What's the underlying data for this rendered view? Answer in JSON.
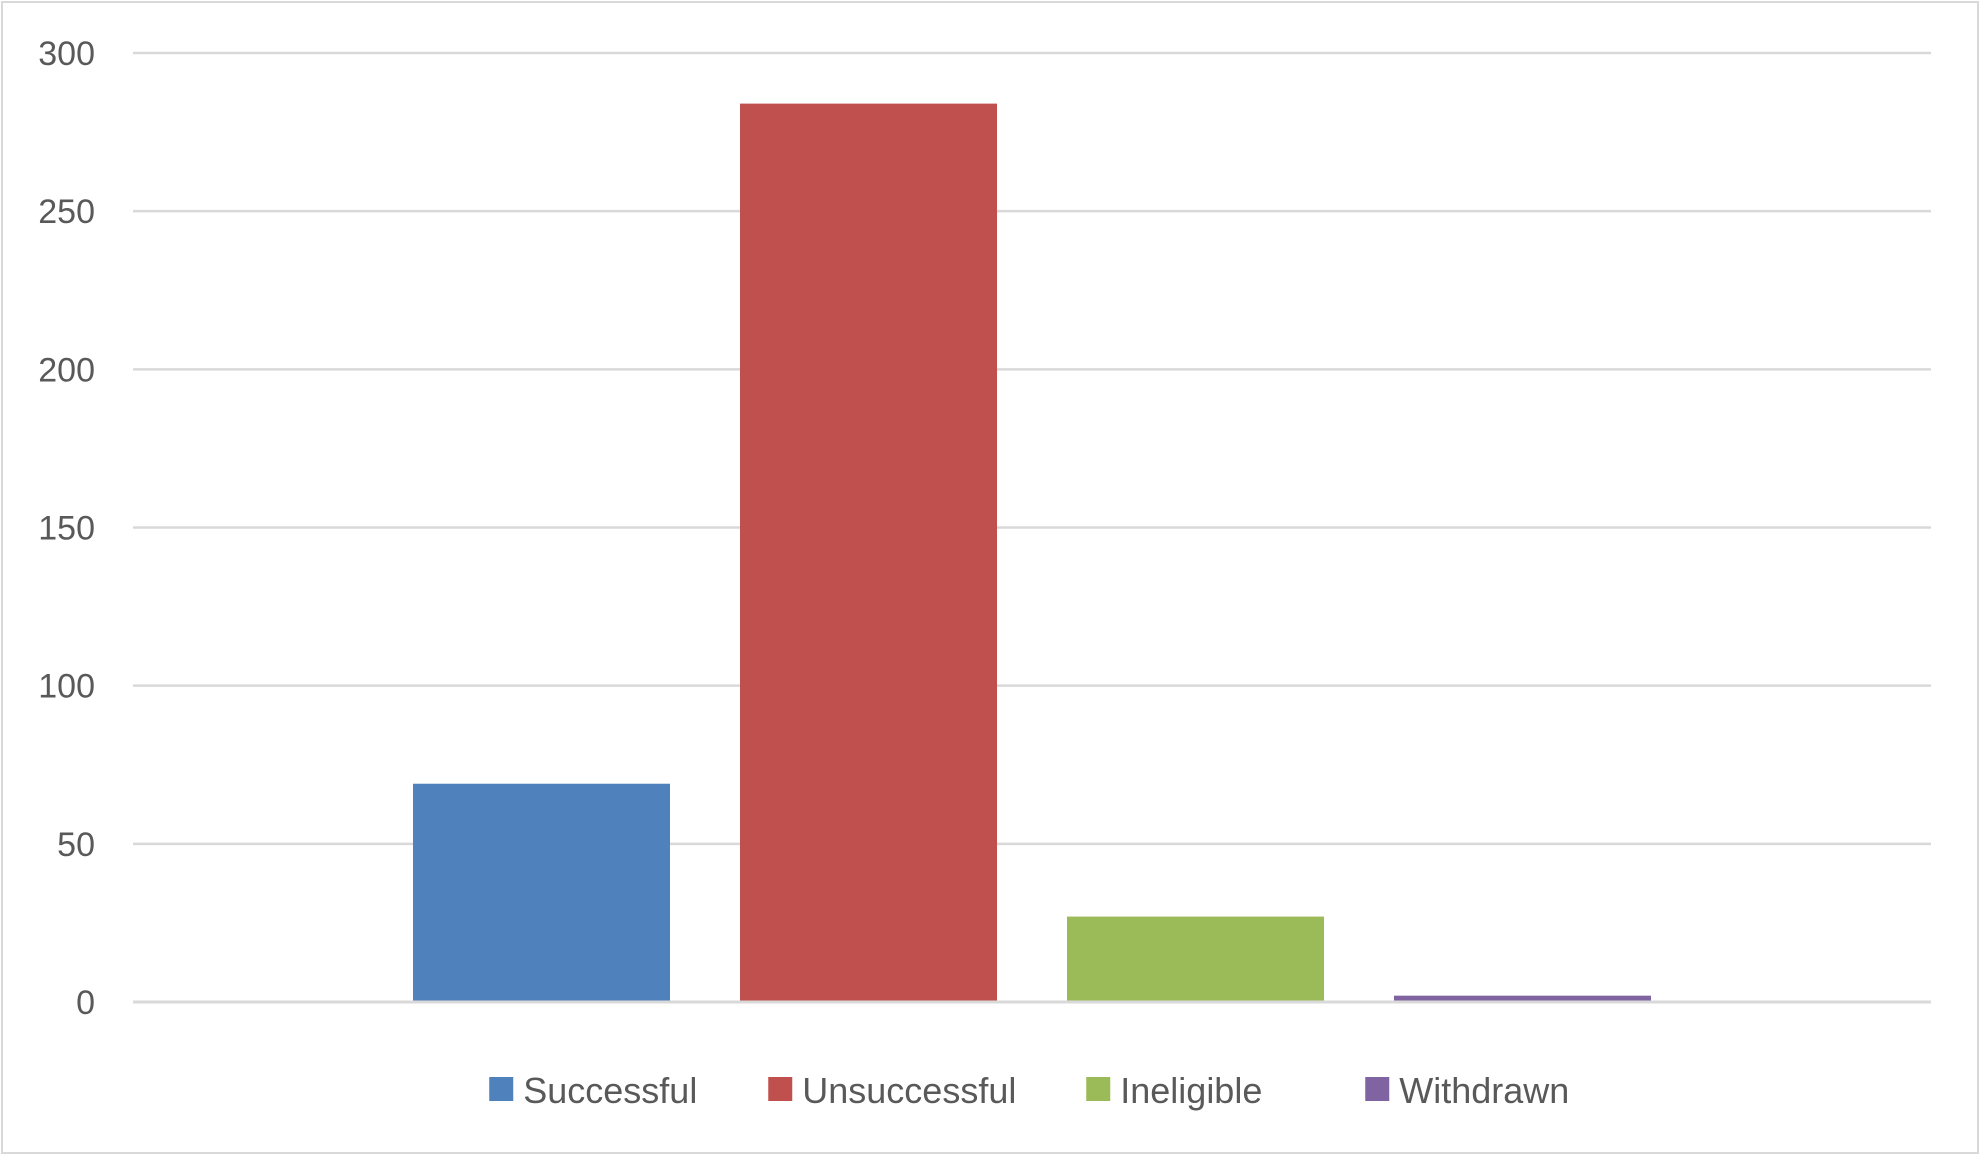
{
  "chart_data": {
    "type": "bar",
    "title": "",
    "xlabel": "",
    "ylabel": "",
    "ylim": [
      0,
      300
    ],
    "y_ticks": [
      0,
      50,
      100,
      150,
      200,
      250,
      300
    ],
    "grid": true,
    "legend_position": "bottom",
    "categories": [
      ""
    ],
    "series": [
      {
        "name": "Successful",
        "values": [
          69
        ],
        "color": "#4f81bd"
      },
      {
        "name": "Unsuccessful",
        "values": [
          284
        ],
        "color": "#c0504d"
      },
      {
        "name": "Ineligible",
        "values": [
          27
        ],
        "color": "#9bbb59"
      },
      {
        "name": "Withdrawn",
        "values": [
          2
        ],
        "color": "#8064a2"
      }
    ],
    "gridline_color": "#d9d9d9",
    "text_color": "#595959"
  }
}
